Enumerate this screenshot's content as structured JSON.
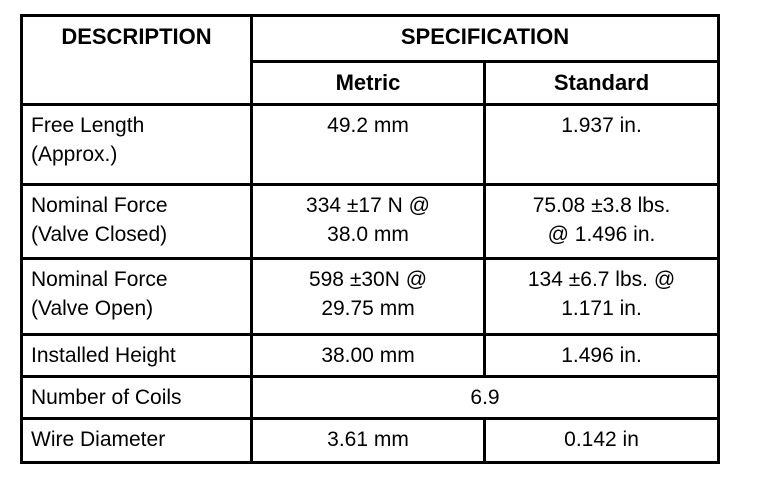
{
  "table": {
    "header": {
      "description": "DESCRIPTION",
      "specification": "SPECIFICATION",
      "metric": "Metric",
      "standard": "Standard"
    },
    "rows": [
      {
        "description": "Free Length\n(Approx.)",
        "metric": "49.2 mm",
        "standard": "1.937 in."
      },
      {
        "description": "Nominal Force\n(Valve Closed)",
        "metric": "334 ±17 N @\n38.0 mm",
        "standard": "75.08 ±3.8 lbs.\n@ 1.496 in."
      },
      {
        "description": "Nominal Force\n(Valve Open)",
        "metric": "598 ±30N @\n29.75 mm",
        "standard": "134 ±6.7 lbs. @\n1.171 in."
      },
      {
        "description": "Installed Height",
        "metric": "38.00 mm",
        "standard": "1.496 in."
      },
      {
        "description": "Number of Coils",
        "value": "6.9"
      },
      {
        "description": "Wire Diameter",
        "metric": "3.61 mm",
        "standard": "0.142 in"
      }
    ],
    "colors": {
      "border": "#000000",
      "background": "#ffffff",
      "text": "#000000"
    }
  }
}
